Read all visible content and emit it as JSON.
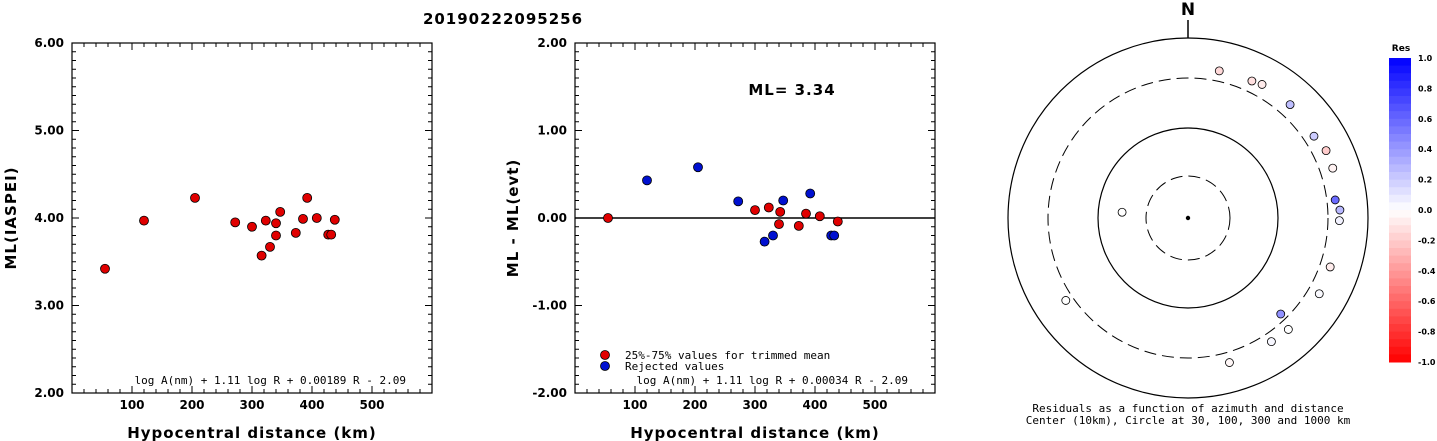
{
  "title": "20190222095256",
  "colors": {
    "accepted": "#e00000",
    "rejected": "#0010d0"
  },
  "chart_data": [
    {
      "type": "scatter",
      "xlabel": "Hypocentral distance (km)",
      "ylabel": "ML(IASPEI)",
      "xlim": [
        0,
        600
      ],
      "ylim": [
        2.0,
        6.0
      ],
      "xticks": [
        "100",
        "200",
        "300",
        "400",
        "500"
      ],
      "yticks": [
        "2.00",
        "3.00",
        "4.00",
        "5.00",
        "6.00"
      ],
      "annotation": "log A(nm) + 1.11 log R + 0.00189 R - 2.09",
      "points": [
        {
          "x": 55,
          "y": 3.42
        },
        {
          "x": 120,
          "y": 3.97
        },
        {
          "x": 205,
          "y": 4.23
        },
        {
          "x": 272,
          "y": 3.95
        },
        {
          "x": 300,
          "y": 3.9
        },
        {
          "x": 316,
          "y": 3.57
        },
        {
          "x": 323,
          "y": 3.97
        },
        {
          "x": 330,
          "y": 3.67
        },
        {
          "x": 340,
          "y": 3.8
        },
        {
          "x": 340,
          "y": 3.94
        },
        {
          "x": 347,
          "y": 4.07
        },
        {
          "x": 373,
          "y": 3.83
        },
        {
          "x": 385,
          "y": 3.99
        },
        {
          "x": 392,
          "y": 4.23
        },
        {
          "x": 408,
          "y": 4.0
        },
        {
          "x": 427,
          "y": 3.81
        },
        {
          "x": 432,
          "y": 3.81
        },
        {
          "x": 438,
          "y": 3.98
        }
      ]
    },
    {
      "type": "scatter",
      "xlabel": "Hypocentral distance (km)",
      "ylabel": "ML - ML(evt)",
      "xlim": [
        0,
        600
      ],
      "ylim": [
        -2.0,
        2.0
      ],
      "xticks": [
        "100",
        "200",
        "300",
        "400",
        "500"
      ],
      "yticks": [
        "-2.00",
        "-1.00",
        "0.00",
        "1.00",
        "2.00"
      ],
      "ml_label": "ML= 3.34",
      "annotation": "log A(nm) + 1.11 log R + 0.00034 R - 2.09",
      "legend": [
        {
          "label": "25%-75% values for trimmed mean",
          "color": "#e00000"
        },
        {
          "label": "Rejected values",
          "color": "#0010d0"
        }
      ],
      "series": [
        {
          "name": "25%-75% values for trimmed mean",
          "points": [
            {
              "x": 55,
              "y": 0.0
            },
            {
              "x": 300,
              "y": 0.09
            },
            {
              "x": 323,
              "y": 0.12
            },
            {
              "x": 340,
              "y": -0.07
            },
            {
              "x": 342,
              "y": 0.07
            },
            {
              "x": 373,
              "y": -0.09
            },
            {
              "x": 385,
              "y": 0.05
            },
            {
              "x": 408,
              "y": 0.02
            },
            {
              "x": 438,
              "y": -0.04
            }
          ]
        },
        {
          "name": "Rejected values",
          "points": [
            {
              "x": 120,
              "y": 0.43
            },
            {
              "x": 205,
              "y": 0.58
            },
            {
              "x": 272,
              "y": 0.19
            },
            {
              "x": 316,
              "y": -0.27
            },
            {
              "x": 330,
              "y": -0.2
            },
            {
              "x": 347,
              "y": 0.2
            },
            {
              "x": 392,
              "y": 0.28
            },
            {
              "x": 427,
              "y": -0.2
            },
            {
              "x": 432,
              "y": -0.2
            }
          ]
        }
      ]
    },
    {
      "type": "scatter",
      "north_label": "N",
      "caption_line1": "Residuals as a function of azimuth and distance",
      "caption_line2": "Center (10km), Circle at 30, 100, 300 and 1000 km",
      "colorbar_title": "Res",
      "colorbar_ticks": [
        "1.0",
        "0.8",
        "0.6",
        "0.4",
        "0.2",
        "0.0",
        "-0.2",
        "-0.4",
        "-0.6",
        "-0.8",
        "-1.0"
      ],
      "stations": [
        {
          "az": 12,
          "dist": 410,
          "res": -0.15
        },
        {
          "az": 25,
          "dist": 420,
          "res": -0.12
        },
        {
          "az": 29,
          "dist": 440,
          "res": -0.08
        },
        {
          "az": 42,
          "dist": 438,
          "res": 0.25
        },
        {
          "az": 57,
          "dist": 408,
          "res": 0.2
        },
        {
          "az": 64,
          "dist": 452,
          "res": -0.2
        },
        {
          "az": 71,
          "dist": 445,
          "res": -0.05
        },
        {
          "az": 83,
          "dist": 385,
          "res": 0.58
        },
        {
          "az": 87,
          "dist": 432,
          "res": 0.28
        },
        {
          "az": 91,
          "dist": 423,
          "res": 0.05
        },
        {
          "az": 109,
          "dist": 410,
          "res": -0.07
        },
        {
          "az": 120,
          "dist": 425,
          "res": 0.02
        },
        {
          "az": 136,
          "dist": 260,
          "res": 0.43
        },
        {
          "az": 138,
          "dist": 405,
          "res": 0.0
        },
        {
          "az": 146,
          "dist": 395,
          "res": 0.03
        },
        {
          "az": 164,
          "dist": 410,
          "res": -0.03
        },
        {
          "az": 275,
          "dist": 55,
          "res": 0.0
        },
        {
          "az": 236,
          "dist": 375,
          "res": 0.0
        }
      ]
    }
  ]
}
